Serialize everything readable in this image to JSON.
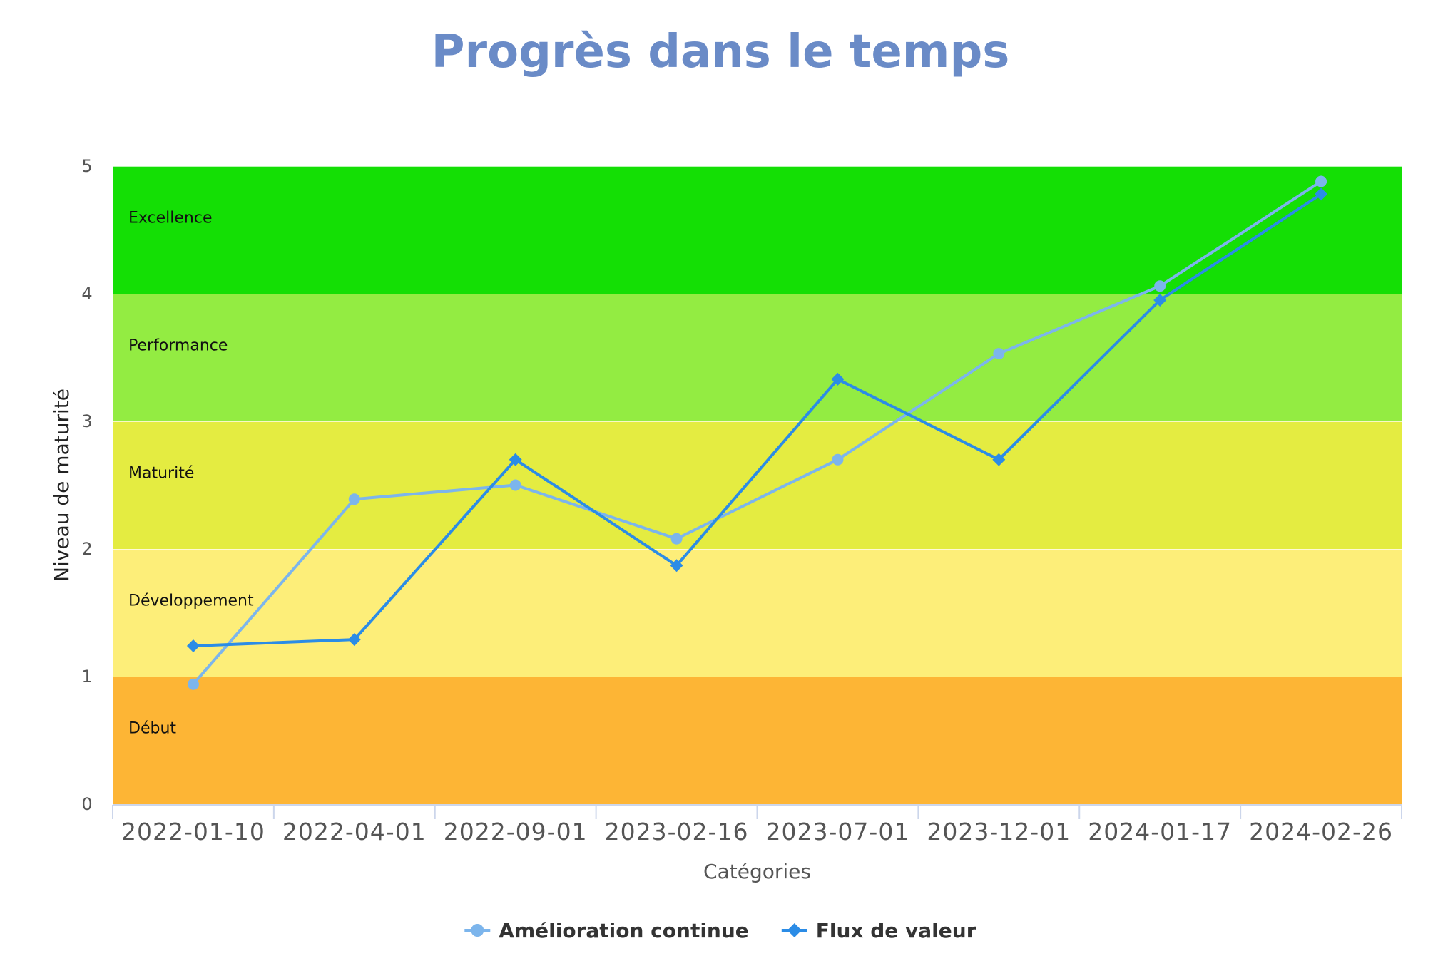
{
  "chart_data": {
    "type": "line",
    "title": "Progrès dans le temps",
    "xlabel": "Catégories",
    "ylabel": "Niveau de maturité",
    "ylim": [
      0,
      5
    ],
    "yticks": [
      "0",
      "1",
      "2",
      "3",
      "4",
      "5"
    ],
    "categories": [
      "2022-01-10",
      "2022-04-01",
      "2022-09-01",
      "2023-02-16",
      "2023-07-01",
      "2023-12-01",
      "2024-01-17",
      "2024-02-26"
    ],
    "bands": [
      {
        "label": "Début",
        "from": 0,
        "to": 1,
        "color": "#fdb535"
      },
      {
        "label": "Développement",
        "from": 1,
        "to": 2,
        "color": "#fdee79"
      },
      {
        "label": "Maturité",
        "from": 2,
        "to": 3,
        "color": "#e4ec41"
      },
      {
        "label": "Performance",
        "from": 3,
        "to": 4,
        "color": "#93ec42"
      },
      {
        "label": "Excellence",
        "from": 4,
        "to": 5,
        "color": "#14df05"
      }
    ],
    "series": [
      {
        "name": "Amélioration continue",
        "values": [
          0.94,
          2.39,
          2.5,
          2.08,
          2.7,
          3.53,
          4.06,
          4.88
        ],
        "color": "#7cb5ec",
        "marker": "circle"
      },
      {
        "name": "Flux de valeur",
        "values": [
          1.24,
          1.29,
          2.7,
          1.87,
          3.33,
          2.7,
          3.95,
          4.78
        ],
        "color": "#2b8ce6",
        "marker": "diamond"
      }
    ],
    "legend": "bottom-center",
    "grid": false
  },
  "colors": {
    "title": "#6a8bc7",
    "axis_line": "#ccd6eb"
  }
}
